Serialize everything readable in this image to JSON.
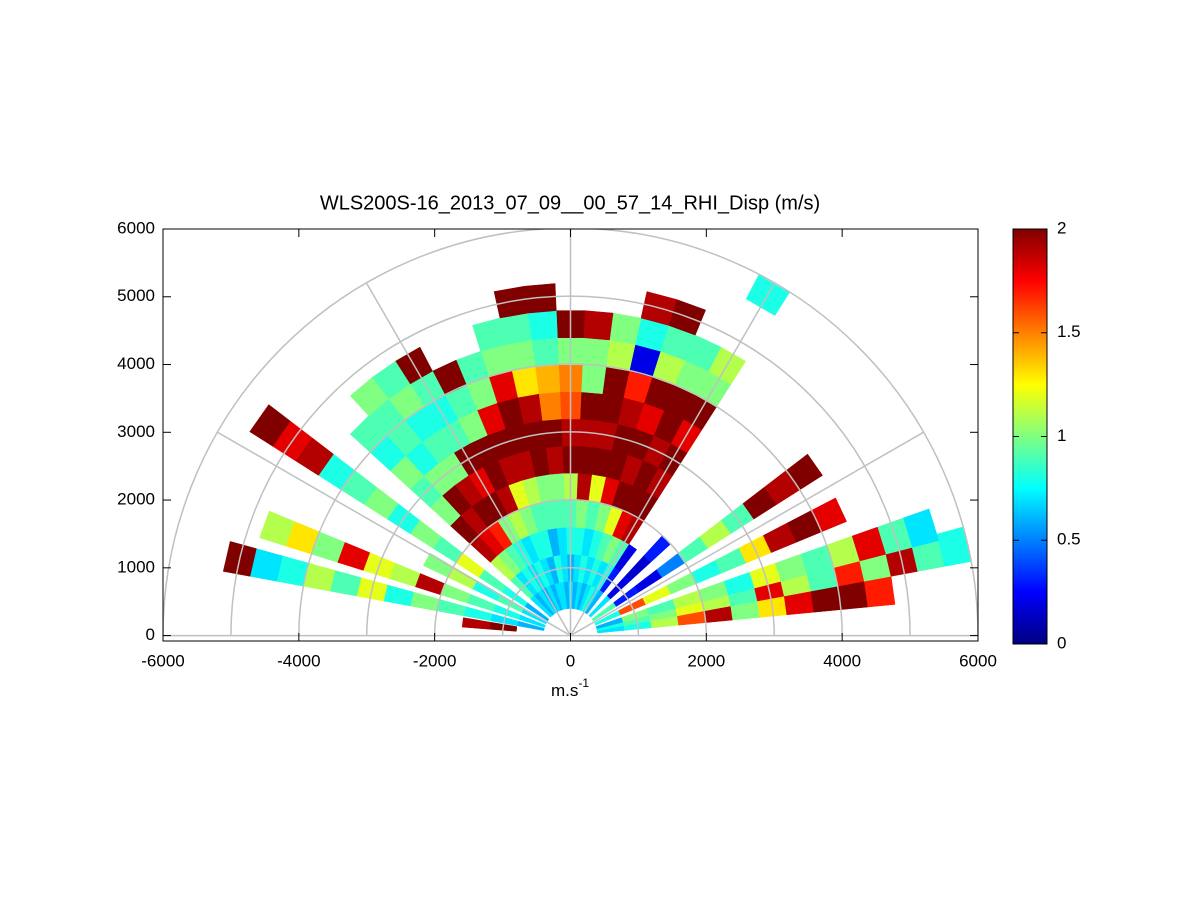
{
  "chart_data": {
    "type": "rhi",
    "title": "WLS200S-16_2013_07_09__00_57_14_RHI_Disp (m/s)",
    "xlabel": "m.s",
    "xlabel_sup": "-1",
    "xlim": [
      -6000,
      6000
    ],
    "ylim": [
      -80,
      6000
    ],
    "xticks": [
      -6000,
      -4000,
      -2000,
      0,
      2000,
      4000,
      6000
    ],
    "yticks": [
      0,
      1000,
      2000,
      3000,
      4000,
      5000,
      6000
    ],
    "rings": [
      1000,
      2000,
      3000,
      4000,
      5000,
      6000
    ],
    "spokes": [
      0,
      30,
      60,
      90,
      120,
      150,
      180
    ],
    "grid_color": "#c0c0c0",
    "colormap": "jet",
    "clim": [
      0,
      2
    ],
    "cticks": [
      0,
      0.5,
      1,
      1.5,
      2
    ],
    "beam_width": 5,
    "gates": [
      0,
      400,
      800,
      1200,
      1600,
      2000,
      2400,
      2800,
      3200,
      3600,
      4000,
      4400,
      4800,
      5200,
      5600,
      6000
    ],
    "angles": [
      8,
      13,
      17,
      25,
      35,
      45,
      55,
      60,
      65,
      70,
      75,
      80,
      85,
      90,
      95,
      100,
      105,
      110,
      115,
      120,
      125,
      130,
      135,
      145,
      152,
      160,
      167,
      173
    ],
    "values": [
      [
        null,
        0.7,
        0.8,
        1.1,
        1.6,
        1.9,
        1.0,
        1.3,
        1.8,
        2,
        2,
        1.7,
        null,
        null,
        null
      ],
      [
        null,
        0.8,
        0.9,
        1.0,
        1.2,
        1.1,
        0.9,
        1.8,
        1.1,
        0.9,
        1.7,
        1.0,
        1.9,
        0.9,
        0.8
      ],
      [
        null,
        0.6,
        1.0,
        0.9,
        1.1,
        1.0,
        0.8,
        1.2,
        1.0,
        0.9,
        1.1,
        1.8,
        0.9,
        0.7,
        null
      ],
      [
        null,
        0.8,
        1.6,
        1.2,
        1.0,
        0.8,
        0.9,
        1.3,
        1.9,
        2,
        1.8,
        null,
        null,
        null,
        null
      ],
      [
        null,
        0.9,
        0.3,
        0.2,
        0.5,
        0.9,
        1.1,
        0.9,
        2,
        1.9,
        2,
        null,
        null,
        null,
        null
      ],
      [
        null,
        0.7,
        0.2,
        0.15,
        0.3,
        null,
        null,
        null,
        null,
        null,
        null,
        null,
        null,
        null,
        null
      ],
      [
        null,
        0.6,
        0.3,
        0.2,
        null,
        null,
        null,
        null,
        null,
        null,
        null,
        null,
        null,
        null,
        null
      ],
      [
        null,
        0.7,
        0.8,
        0.9,
        1.9,
        2,
        1.9,
        2,
        1.8,
        2,
        1.0,
        1.1,
        null,
        null,
        0.8
      ],
      [
        null,
        0.8,
        0.7,
        1.0,
        1.8,
        2,
        2,
        1.9,
        2,
        2,
        1.0,
        0.9,
        null,
        null,
        null
      ],
      [
        null,
        0.7,
        0.8,
        0.9,
        1.2,
        2,
        1.9,
        2,
        1.8,
        2,
        1.1,
        0.9,
        2,
        null,
        null
      ],
      [
        null,
        0.6,
        0.7,
        0.8,
        1.0,
        1.8,
        2,
        2,
        1.9,
        1.7,
        0.2,
        0.8,
        1.9,
        null,
        null
      ],
      [
        null,
        0.7,
        0.8,
        0.7,
        0.9,
        1.2,
        2,
        1.9,
        2,
        2,
        1.1,
        1.0,
        null,
        null,
        null
      ],
      [
        null,
        0.6,
        0.7,
        0.8,
        1.0,
        1.9,
        2,
        1.9,
        2,
        1.0,
        1.0,
        1.9,
        null,
        null,
        null
      ],
      [
        null,
        0.7,
        0.6,
        0.8,
        0.9,
        1.1,
        2,
        1.9,
        1.6,
        1.5,
        1.0,
        2,
        null,
        null,
        null
      ],
      [
        null,
        0.6,
        0.7,
        0.7,
        0.9,
        1.0,
        1.9,
        2,
        1.5,
        1.4,
        0.9,
        0.8,
        2,
        null,
        null
      ],
      [
        null,
        0.7,
        0.8,
        0.6,
        0.9,
        1.0,
        2,
        2,
        1.9,
        1.3,
        1.0,
        0.9,
        2,
        null,
        null
      ],
      [
        null,
        0.7,
        0.6,
        0.8,
        0.9,
        1.1,
        1.9,
        2,
        2,
        1.8,
        1.0,
        0.9,
        null,
        null,
        null
      ],
      [
        null,
        0.6,
        0.7,
        0.8,
        1.0,
        1.2,
        1.9,
        2,
        1.8,
        1.0,
        0.9,
        null,
        null,
        null,
        null
      ],
      [
        null,
        0.7,
        0.8,
        0.7,
        1.1,
        1.9,
        2,
        2,
        1.0,
        0.9,
        2,
        null,
        null,
        null,
        null
      ],
      [
        null,
        0.6,
        0.7,
        0.8,
        1.0,
        2,
        1.8,
        2,
        0.9,
        0.8,
        0.9,
        2,
        null,
        null,
        null
      ],
      [
        null,
        0.7,
        0.8,
        0.9,
        1.7,
        2,
        1.9,
        1.0,
        0.9,
        0.8,
        1.0,
        0.9,
        null,
        null,
        null
      ],
      [
        null,
        0.6,
        0.7,
        1.0,
        1.8,
        1.9,
        2,
        1.0,
        0.8,
        0.9,
        0.9,
        1.0,
        null,
        null,
        null
      ],
      [
        null,
        0.7,
        0.9,
        1.1,
        1.9,
        2,
        1.0,
        0.9,
        1.0,
        0.8,
        0.9,
        null,
        null,
        null,
        null
      ],
      [
        null,
        0.6,
        0.8,
        0.9,
        1.2,
        0.9,
        1.0,
        0.8,
        1.0,
        0.9,
        0.8,
        1.9,
        1.8,
        2,
        null
      ],
      [
        null,
        0.7,
        0.9,
        0.8,
        1.1,
        1.0,
        null,
        null,
        null,
        null,
        null,
        null,
        null,
        null,
        null
      ],
      [
        null,
        0.7,
        0.8,
        0.9,
        1.0,
        1.9,
        1.1,
        1.2,
        1.8,
        1.0,
        1.3,
        1.1,
        null,
        null,
        null
      ],
      [
        null,
        0.6,
        0.7,
        0.8,
        0.9,
        1.0,
        0.8,
        1.2,
        0.9,
        1.1,
        0.8,
        0.7,
        2,
        null,
        null
      ],
      [
        null,
        null,
        2,
        1.9,
        null,
        null,
        null,
        null,
        null,
        null,
        null,
        null,
        null,
        null,
        null
      ]
    ]
  }
}
